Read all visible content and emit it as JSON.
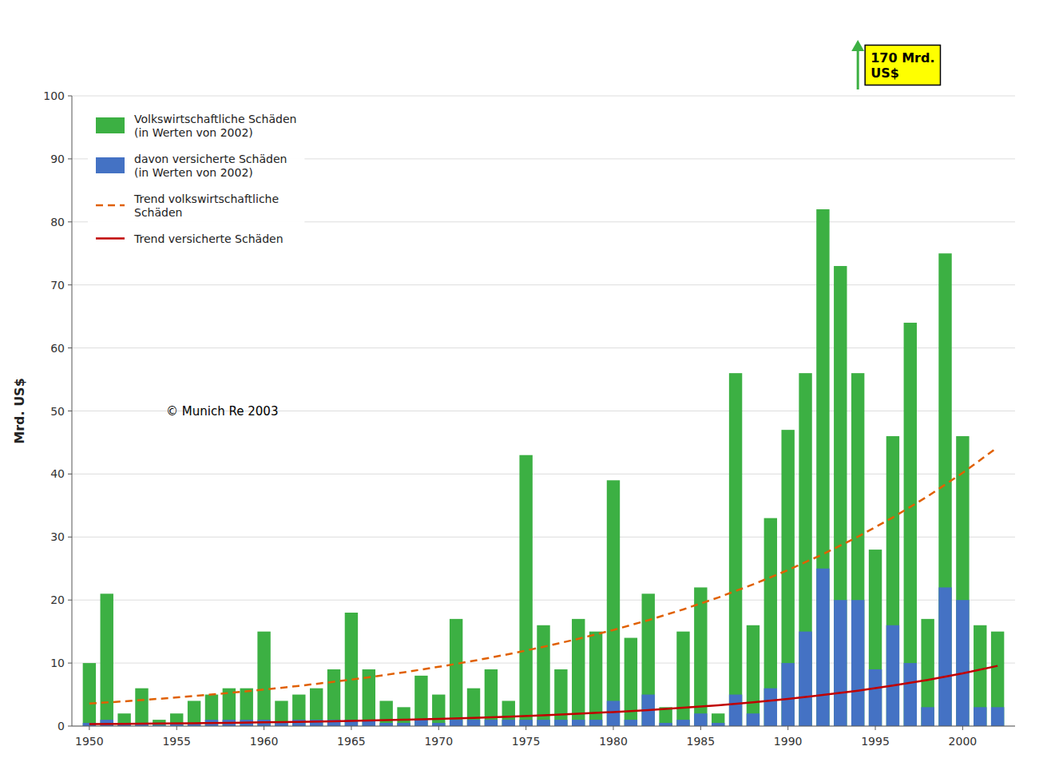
{
  "chart_data": {
    "type": "bar",
    "ylabel": "Mrd. US$",
    "x": [
      1950,
      1951,
      1952,
      1953,
      1954,
      1955,
      1956,
      1957,
      1958,
      1959,
      1960,
      1961,
      1962,
      1963,
      1964,
      1965,
      1966,
      1967,
      1968,
      1969,
      1970,
      1971,
      1972,
      1973,
      1974,
      1975,
      1976,
      1977,
      1978,
      1979,
      1980,
      1981,
      1982,
      1983,
      1984,
      1985,
      1986,
      1987,
      1988,
      1989,
      1990,
      1991,
      1992,
      1993,
      1994,
      1995,
      1996,
      1997,
      1998,
      1999,
      2000,
      2001,
      2002
    ],
    "series": [
      {
        "name": "Volkswirtschaftliche Schäden\n(in Werten von 2002)",
        "type": "bar",
        "color": "#3cb043",
        "values": [
          10,
          21,
          2,
          6,
          1,
          2,
          4,
          5,
          6,
          6,
          15,
          4,
          5,
          6,
          9,
          18,
          9,
          4,
          3,
          8,
          5,
          17,
          6,
          9,
          4,
          43,
          16,
          9,
          17,
          15,
          39,
          14,
          21,
          3,
          15,
          22,
          2,
          56,
          16,
          33,
          47,
          56,
          82,
          73,
          56,
          28,
          46,
          64,
          17,
          75,
          46,
          16,
          15
        ]
      },
      {
        "name": "davon versicherte Schäden\n(in Werten von 2002)",
        "type": "bar",
        "color": "#4472c4",
        "values": [
          0.5,
          1,
          0.3,
          0.5,
          0.2,
          0.3,
          0.5,
          1,
          1,
          1,
          1,
          0.5,
          1,
          1,
          1,
          1,
          1,
          0.5,
          0.5,
          1,
          0.5,
          1,
          1,
          1,
          1,
          1,
          1,
          1,
          1,
          1,
          4,
          1,
          5,
          0.5,
          1,
          2,
          0.5,
          5,
          2,
          6,
          10,
          15,
          25,
          20,
          20,
          9,
          16,
          10,
          3,
          22,
          20,
          3,
          3
        ]
      },
      {
        "name": "Trend volkswirtschaftliche\nSchäden",
        "type": "line",
        "line_style": "dashed",
        "color": "#e06000",
        "x": [
          1950,
          1952,
          1954,
          1956,
          1958,
          1960,
          1962,
          1964,
          1966,
          1968,
          1970,
          1972,
          1974,
          1976,
          1978,
          1980,
          1982,
          1984,
          1986,
          1988,
          1990,
          1992,
          1994,
          1996,
          1998,
          2000,
          2002
        ],
        "values": [
          3.57,
          3.93,
          4.33,
          4.77,
          5.26,
          5.79,
          6.38,
          7.03,
          7.74,
          8.53,
          9.4,
          10.35,
          11.41,
          12.57,
          13.85,
          15.25,
          16.8,
          18.51,
          20.39,
          22.47,
          24.75,
          27.27,
          30.04,
          33.1,
          36.46,
          40.17,
          44.25
        ]
      },
      {
        "name": "Trend versicherte Schäden",
        "type": "line",
        "line_style": "solid",
        "color": "#c00000",
        "x": [
          1950,
          1952,
          1954,
          1956,
          1958,
          1960,
          1962,
          1964,
          1966,
          1968,
          1970,
          1972,
          1974,
          1976,
          1978,
          1980,
          1982,
          1984,
          1986,
          1988,
          1990,
          1992,
          1994,
          1996,
          1998,
          2000,
          2002
        ],
        "values": [
          0.31,
          0.35,
          0.4,
          0.45,
          0.52,
          0.59,
          0.68,
          0.77,
          0.88,
          1.01,
          1.15,
          1.31,
          1.5,
          1.71,
          1.95,
          2.23,
          2.54,
          2.9,
          3.31,
          3.78,
          4.32,
          4.93,
          5.62,
          6.42,
          7.33,
          8.37,
          9.55
        ]
      }
    ],
    "stacked": false,
    "xlim": [
      1949,
      2003
    ],
    "xticks": [
      1950,
      1955,
      1960,
      1965,
      1970,
      1975,
      1980,
      1985,
      1990,
      1995,
      2000
    ],
    "ylim": [
      0,
      100
    ],
    "yticks": [
      0,
      10,
      20,
      30,
      40,
      50,
      60,
      70,
      80,
      90,
      100
    ],
    "grid": true,
    "legend": "upper left",
    "annotations": [
      {
        "text": "170 Mrd.\nUS$",
        "x": 1994
      },
      {
        "text": "© Munich Re 2003"
      }
    ]
  }
}
